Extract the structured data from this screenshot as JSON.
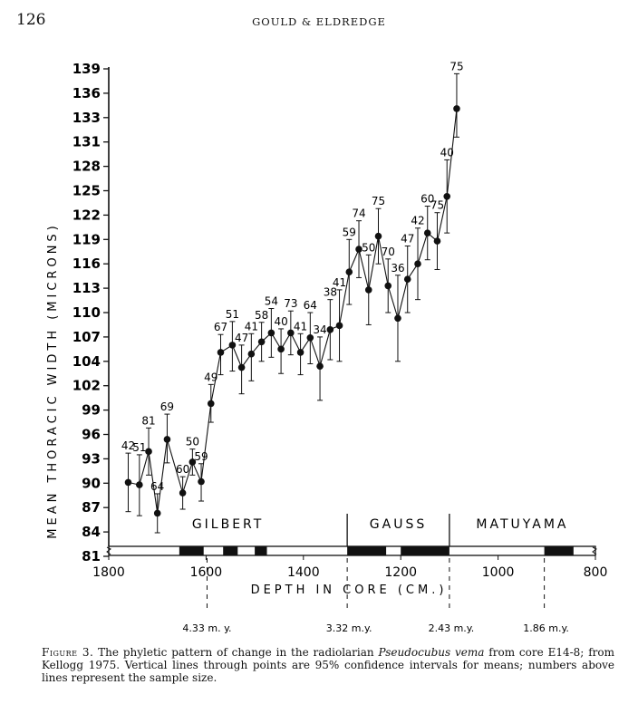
{
  "page": {
    "page_number": "126",
    "running_head": "GOULD & ELDREDGE"
  },
  "caption": {
    "lead": "Figure 3.",
    "text_before_species": " The phyletic pattern of change in the radiolarian ",
    "species": "Pseudocubus vema",
    "text_after_species": " from core E14-8; from Kellogg 1975. Vertical lines through points are 95% confidence intervals for means; numbers above lines represent the sample size."
  },
  "chart_data": {
    "type": "line",
    "ylabel": "MEAN THORACIC WIDTH (MICRONS)",
    "xlabel": "DEPTH IN CORE (CM.)",
    "y_ticks": [
      81,
      84,
      87,
      90,
      93,
      96,
      99,
      102,
      104,
      107,
      110,
      113,
      116,
      119,
      122,
      125,
      128,
      131,
      133,
      136,
      139
    ],
    "x_ticks": [
      1800,
      1600,
      1400,
      1200,
      1000,
      800
    ],
    "x_reversed": true,
    "xlim": [
      1800,
      800
    ],
    "series": [
      {
        "style": "filled-circle markers joined by line with vertical error bars",
        "points": [
          {
            "x": 1760,
            "y": 90.1,
            "lo": 86.5,
            "hi": 93.7,
            "n": "42"
          },
          {
            "x": 1737,
            "y": 89.8,
            "lo": 86.0,
            "hi": 93.5,
            "n": "51"
          },
          {
            "x": 1718,
            "y": 93.9,
            "lo": 91.0,
            "hi": 96.8,
            "n": "81"
          },
          {
            "x": 1700,
            "y": 86.3,
            "lo": 83.9,
            "hi": 88.7,
            "n": "64"
          },
          {
            "x": 1680,
            "y": 95.4,
            "lo": 92.5,
            "hi": 98.5,
            "n": "69"
          },
          {
            "x": 1648,
            "y": 88.8,
            "lo": 86.8,
            "hi": 90.8,
            "n": "60"
          },
          {
            "x": 1628,
            "y": 92.6,
            "lo": 91.0,
            "hi": 94.2,
            "n": "50"
          },
          {
            "x": 1610,
            "y": 90.2,
            "lo": 87.8,
            "hi": 92.4,
            "n": "59"
          },
          {
            "x": 1590,
            "y": 99.8,
            "lo": 97.5,
            "hi": 102.1,
            "n": "49"
          },
          {
            "x": 1570,
            "y": 105.1,
            "lo": 102.9,
            "hi": 107.3,
            "n": "67"
          },
          {
            "x": 1546,
            "y": 106.0,
            "lo": 103.2,
            "hi": 108.9,
            "n": "51"
          },
          {
            "x": 1527,
            "y": 103.5,
            "lo": 101.0,
            "hi": 106.0,
            "n": "47"
          },
          {
            "x": 1507,
            "y": 104.9,
            "lo": 102.4,
            "hi": 107.4,
            "n": "41"
          },
          {
            "x": 1486,
            "y": 106.4,
            "lo": 104.0,
            "hi": 108.8,
            "n": "58"
          },
          {
            "x": 1466,
            "y": 107.5,
            "lo": 104.5,
            "hi": 110.5,
            "n": "54"
          },
          {
            "x": 1446,
            "y": 105.5,
            "lo": 103.0,
            "hi": 108.0,
            "n": "40"
          },
          {
            "x": 1426,
            "y": 107.5,
            "lo": 104.8,
            "hi": 110.2,
            "n": "73"
          },
          {
            "x": 1406,
            "y": 105.1,
            "lo": 102.9,
            "hi": 107.4,
            "n": "41"
          },
          {
            "x": 1386,
            "y": 106.9,
            "lo": 103.8,
            "hi": 110.0,
            "n": "64"
          },
          {
            "x": 1366,
            "y": 103.6,
            "lo": 100.2,
            "hi": 107.0,
            "n": "34"
          },
          {
            "x": 1345,
            "y": 107.9,
            "lo": 104.2,
            "hi": 111.6,
            "n": "38"
          },
          {
            "x": 1326,
            "y": 108.4,
            "lo": 104.0,
            "hi": 112.8,
            "n": "41"
          },
          {
            "x": 1306,
            "y": 115.0,
            "lo": 111.0,
            "hi": 119.0,
            "n": "59"
          },
          {
            "x": 1286,
            "y": 117.8,
            "lo": 114.3,
            "hi": 121.3,
            "n": "74"
          },
          {
            "x": 1266,
            "y": 112.8,
            "lo": 108.5,
            "hi": 117.1,
            "n": "50"
          },
          {
            "x": 1246,
            "y": 119.4,
            "lo": 116.0,
            "hi": 122.8,
            "n": "75"
          },
          {
            "x": 1226,
            "y": 113.3,
            "lo": 110.0,
            "hi": 116.6,
            "n": "70"
          },
          {
            "x": 1206,
            "y": 109.3,
            "lo": 104.0,
            "hi": 114.6,
            "n": "36"
          },
          {
            "x": 1186,
            "y": 114.1,
            "lo": 110.0,
            "hi": 118.2,
            "n": "47"
          },
          {
            "x": 1165,
            "y": 116.0,
            "lo": 111.6,
            "hi": 120.4,
            "n": "42"
          },
          {
            "x": 1145,
            "y": 119.8,
            "lo": 116.5,
            "hi": 123.1,
            "n": "60"
          },
          {
            "x": 1125,
            "y": 118.8,
            "lo": 115.3,
            "hi": 122.3,
            "n": "75"
          },
          {
            "x": 1105,
            "y": 124.3,
            "lo": 119.8,
            "hi": 128.8,
            "n": "40"
          },
          {
            "x": 1085,
            "y": 134.1,
            "lo": 131.4,
            "hi": 138.4,
            "n": "75"
          }
        ]
      }
    ],
    "epochs": [
      {
        "name": "GILBERT",
        "x_start": 1800,
        "x_end": 1310
      },
      {
        "name": "GAUSS",
        "x_start": 1310,
        "x_end": 1100
      },
      {
        "name": "MATUYAMA",
        "x_start": 1100,
        "x_end": 800
      }
    ],
    "magnetic_black_bands": [
      [
        1655,
        1605
      ],
      [
        1565,
        1535
      ],
      [
        1500,
        1475
      ],
      [
        1310,
        1230
      ],
      [
        1200,
        1100
      ],
      [
        905,
        845
      ]
    ],
    "age_markers": [
      {
        "x": 1598,
        "label": "4.33 m. y."
      },
      {
        "x": 1310,
        "label": "3.32 m.y."
      },
      {
        "x": 1100,
        "label": "2.43 m.y."
      },
      {
        "x": 905,
        "label": "1.86 m.y."
      }
    ]
  }
}
